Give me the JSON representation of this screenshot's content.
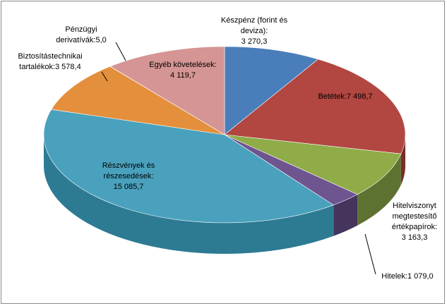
{
  "chart_data": {
    "type": "pie",
    "style": "3d",
    "unit_note": "",
    "slices": [
      {
        "name": "Készpénz (forint és deviza)",
        "label_lines": [
          "Készpénz (forint és",
          "deviza):",
          "3 270,3"
        ],
        "value": 3270.3,
        "color": "#4a7ebb",
        "side": "#2f5787"
      },
      {
        "name": "Betétek",
        "label_lines": [
          "Betétek:7 498,7"
        ],
        "value": 7498.7,
        "color": "#b24641",
        "side": "#7a2d2a"
      },
      {
        "name": "Hitelviszonyt megtestesítő értékpapírok",
        "label_lines": [
          "Hitelviszonyt",
          "megtestesítő",
          "értékpapírok:",
          "3 163,3"
        ],
        "value": 3163.3,
        "color": "#8fac48",
        "side": "#5d7230"
      },
      {
        "name": "Hitelek",
        "label_lines": [
          "Hitelek:1 079,0"
        ],
        "value": 1079.0,
        "color": "#6f558f",
        "side": "#45345c"
      },
      {
        "name": "Részvények és részesedések",
        "label_lines": [
          "Részvények és",
          "részesedések:",
          "15 085,7"
        ],
        "value": 15085.7,
        "color": "#4aa1bd",
        "side": "#2d7a93"
      },
      {
        "name": "Biztosítástechnikai tartalékok",
        "label_lines": [
          "Biztosítástechnikai",
          "tartalékok:3 578,4"
        ],
        "value": 3578.4,
        "color": "#e48f3c",
        "side": "#a8642a"
      },
      {
        "name": "Pénzügyi derivatívák",
        "label_lines": [
          "Pénzügyi",
          "derivatívák:5,0"
        ],
        "value": 5.0,
        "color": "#c0c0c0",
        "side": "#8a8a8a"
      },
      {
        "name": "Egyéb követelések",
        "label_lines": [
          "Egyéb követelések:",
          "4 119,7"
        ],
        "value": 4119.7,
        "color": "#d49594",
        "side": "#9c6665"
      }
    ],
    "legend": "none",
    "data_labels": "category-and-value"
  }
}
